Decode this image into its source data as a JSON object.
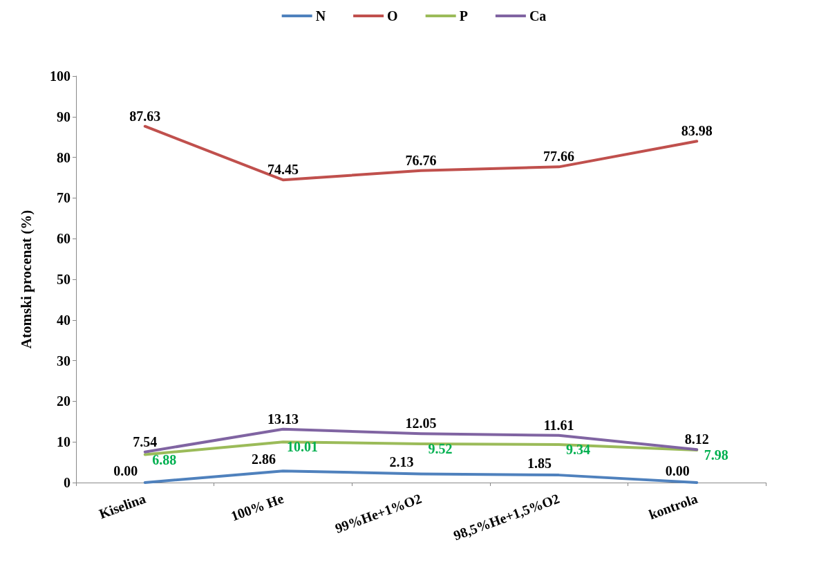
{
  "chart_data": {
    "type": "line",
    "ylabel": "Atomski procenat (%)",
    "categories": [
      "Kiselina",
      "100% He",
      "99%He+1%O2",
      "98,5%He+1,5%O2",
      "kontrola"
    ],
    "series": [
      {
        "name": "N",
        "color": "#4f81bd",
        "values": [
          0,
          2.86,
          2.13,
          1.85,
          0
        ],
        "value_labels": [
          "0.00",
          "2.86",
          "2.13",
          "1.85",
          "0.00"
        ]
      },
      {
        "name": "O",
        "color": "#c0504d",
        "values": [
          87.63,
          74.45,
          76.76,
          77.66,
          83.98
        ],
        "value_labels": [
          "87.63",
          "74.45",
          "76.76",
          "77.66",
          "83.98"
        ]
      },
      {
        "name": "P",
        "color": "#9bbb59",
        "values": [
          6.88,
          10.01,
          9.52,
          9.34,
          7.98
        ],
        "value_labels": [
          "6.88",
          "10.01",
          "9.52",
          "9.34",
          "7.98"
        ]
      },
      {
        "name": "Ca",
        "color": "#8064a2",
        "values": [
          7.54,
          13.13,
          12.05,
          11.61,
          8.12
        ],
        "value_labels": [
          "7.54",
          "13.13",
          "12.05",
          "11.61",
          "8.12"
        ]
      }
    ],
    "ylim": [
      0,
      100
    ],
    "yticks": [
      0,
      10,
      20,
      30,
      40,
      50,
      60,
      70,
      80,
      90,
      100
    ],
    "grid": false,
    "legend": "top",
    "marker": "none",
    "line_style": "solid"
  }
}
